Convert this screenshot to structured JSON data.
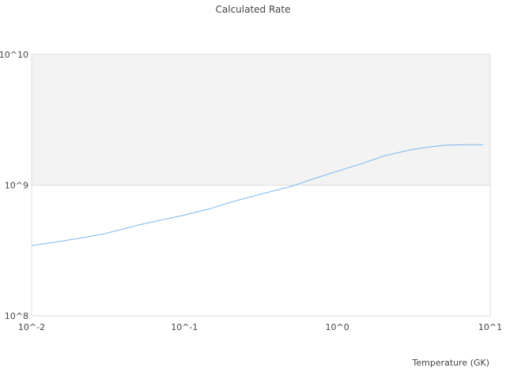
{
  "chart_data": {
    "type": "line",
    "title": "Calculated Rate",
    "xlabel": "Temperature (GK)",
    "ylabel": "",
    "x_scale": "log",
    "y_scale": "log",
    "xlim": [
      0.01,
      10
    ],
    "ylim": [
      100000000,
      10000000000
    ],
    "x_ticks": [
      {
        "value": 0.01,
        "label": "10^-2"
      },
      {
        "value": 0.1,
        "label": "10^-1"
      },
      {
        "value": 1,
        "label": "10^0"
      },
      {
        "value": 10,
        "label": "10^1"
      }
    ],
    "y_ticks": [
      {
        "value": 100000000,
        "label": "10^8"
      },
      {
        "value": 1000000000,
        "label": "10^9"
      },
      {
        "value": 10000000000,
        "label": "10^10"
      }
    ],
    "grid": true,
    "alternating_bands": true,
    "colors": {
      "line": "#7cb5ec",
      "band": "#f3f3f3",
      "grid": "#dddddd"
    },
    "series": [
      {
        "x": [
          0.01,
          0.015,
          0.02,
          0.03,
          0.05,
          0.07,
          0.1,
          0.15,
          0.2,
          0.3,
          0.5,
          0.7,
          1,
          1.5,
          2,
          3,
          4,
          5,
          7,
          9
        ],
        "y": [
          345000000,
          370000000,
          390000000,
          425000000,
          495000000,
          540000000,
          590000000,
          665000000,
          740000000,
          840000000,
          980000000,
          1120000000,
          1280000000,
          1480000000,
          1670000000,
          1860000000,
          1960000000,
          2020000000,
          2040000000,
          2040000000
        ]
      }
    ]
  }
}
